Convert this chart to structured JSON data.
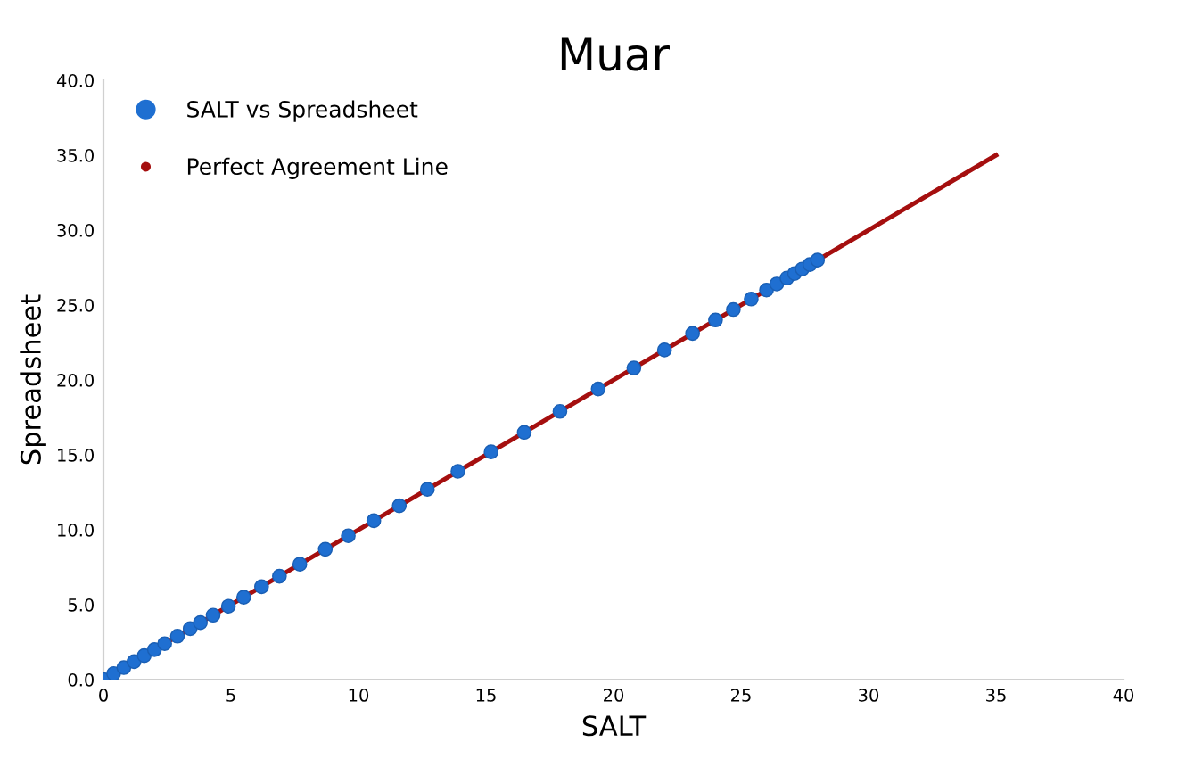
{
  "chart_data": {
    "type": "scatter",
    "title": "Muar",
    "xlabel": "SALT",
    "ylabel": "Spreadsheet",
    "xlim": [
      0,
      40
    ],
    "xticks": [
      0,
      5,
      10,
      15,
      20,
      25,
      30,
      35,
      40
    ],
    "ylim": [
      0,
      40
    ],
    "yticks": [
      {
        "value": 0,
        "label": "0.0"
      },
      {
        "value": 5,
        "label": "5.0"
      },
      {
        "value": 10,
        "label": "10.0"
      },
      {
        "value": 15,
        "label": "15.0"
      },
      {
        "value": 20,
        "label": "20.0"
      },
      {
        "value": 25,
        "label": "25.0"
      },
      {
        "value": 30,
        "label": "30.0"
      },
      {
        "value": 35,
        "label": "35.0"
      },
      {
        "value": 40,
        "label": "40.0"
      }
    ],
    "grid": false,
    "legend": "top left",
    "series": [
      {
        "name": "SALT vs Spreadsheet",
        "color": "#1f6fd1",
        "marker": "circle",
        "x": [
          0,
          0.4,
          0.8,
          1.2,
          1.6,
          2.0,
          2.4,
          2.9,
          3.4,
          3.8,
          4.3,
          4.9,
          5.5,
          6.2,
          6.9,
          7.7,
          8.7,
          9.6,
          10.6,
          11.6,
          12.7,
          13.9,
          15.2,
          16.5,
          17.9,
          19.4,
          20.8,
          22.0,
          23.1,
          24.0,
          24.7,
          25.4,
          26.0,
          26.4,
          26.8,
          27.1,
          27.4,
          27.7,
          28.0
        ],
        "values": [
          0,
          0.4,
          0.8,
          1.2,
          1.6,
          2.0,
          2.4,
          2.9,
          3.4,
          3.8,
          4.3,
          4.9,
          5.5,
          6.2,
          6.9,
          7.7,
          8.7,
          9.6,
          10.6,
          11.6,
          12.7,
          13.9,
          15.2,
          16.5,
          17.9,
          19.4,
          20.8,
          22.0,
          23.1,
          24.0,
          24.7,
          25.4,
          26.0,
          26.4,
          26.8,
          27.1,
          27.4,
          27.7,
          28.0
        ]
      },
      {
        "name": "Perfect Agreement Line",
        "color": "#a50f0f",
        "type": "line",
        "marker": "none",
        "x": [
          0,
          35
        ],
        "values": [
          0,
          35
        ]
      }
    ]
  }
}
